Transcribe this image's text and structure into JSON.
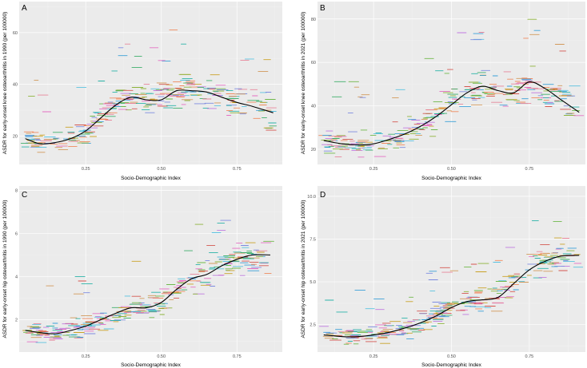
{
  "chart_data": [
    {
      "panel": "A",
      "type": "scatter",
      "xlabel": "Socio-Demographic Index",
      "ylabel": "ASDR for early-onset knee osteoarthritis in 1990 (per 100000)",
      "xlim": [
        0.03,
        0.9
      ],
      "ylim": [
        9,
        72
      ],
      "xticks": [
        0.25,
        0.5,
        0.75
      ],
      "xtick_labels": [
        "0.25",
        "0.50",
        "0.75"
      ],
      "yticks": [
        20,
        40,
        60
      ],
      "ytick_labels": [
        "20",
        "40",
        "60"
      ],
      "trend": {
        "x": [
          0.05,
          0.1,
          0.15,
          0.2,
          0.25,
          0.3,
          0.35,
          0.4,
          0.45,
          0.5,
          0.55,
          0.6,
          0.65,
          0.7,
          0.75,
          0.8,
          0.87
        ],
        "y": [
          19,
          17,
          17.5,
          19,
          22,
          27,
          32,
          35,
          34,
          34,
          37.5,
          37.5,
          37,
          35,
          33,
          31.5,
          29
        ]
      },
      "seed": 11,
      "points": 300,
      "point_spread": 9
    },
    {
      "panel": "B",
      "type": "scatter",
      "xlabel": "Socio-Demographic Index",
      "ylabel": "ASDR for early-onset knee osteoarthritis in 2021 (per 100000)",
      "xlim": [
        0.07,
        0.93
      ],
      "ylim": [
        13,
        88
      ],
      "xticks": [
        0.25,
        0.5,
        0.75
      ],
      "xtick_labels": [
        "0.25",
        "0.50",
        "0.75"
      ],
      "yticks": [
        20,
        40,
        60,
        80
      ],
      "ytick_labels": [
        "20",
        "40",
        "60",
        "80"
      ],
      "trend": {
        "x": [
          0.09,
          0.15,
          0.2,
          0.25,
          0.3,
          0.35,
          0.4,
          0.45,
          0.5,
          0.55,
          0.6,
          0.65,
          0.7,
          0.75,
          0.8,
          0.85,
          0.91
        ],
        "y": [
          24,
          22.5,
          22,
          22.5,
          24.5,
          27,
          30.5,
          35,
          40.5,
          46,
          49,
          47,
          46,
          51,
          48,
          43,
          37
        ]
      },
      "seed": 23,
      "points": 300,
      "point_spread": 11
    },
    {
      "panel": "C",
      "type": "scatter",
      "xlabel": "Socio-Demographic Index",
      "ylabel": "ASDR for early-onset hip osteoarthritis in 1990 (per 100000)",
      "xlim": [
        0.03,
        0.9
      ],
      "ylim": [
        0.5,
        8.2
      ],
      "xticks": [
        0.25,
        0.5,
        0.75
      ],
      "xtick_labels": [
        "0.25",
        "0.50",
        "0.75"
      ],
      "yticks": [
        2,
        4,
        6,
        8
      ],
      "ytick_labels": [
        "2",
        "4",
        "6",
        "8"
      ],
      "trend": {
        "x": [
          0.05,
          0.1,
          0.15,
          0.2,
          0.25,
          0.3,
          0.35,
          0.4,
          0.45,
          0.5,
          0.55,
          0.6,
          0.65,
          0.7,
          0.75,
          0.8,
          0.86
        ],
        "y": [
          1.5,
          1.4,
          1.35,
          1.5,
          1.7,
          2.0,
          2.3,
          2.55,
          2.55,
          2.8,
          3.4,
          3.9,
          4.1,
          4.5,
          4.8,
          5.0,
          5.0
        ]
      },
      "seed": 37,
      "points": 300,
      "point_spread": 0.9
    },
    {
      "panel": "D",
      "type": "scatter",
      "xlabel": "Socio-Demographic Index",
      "ylabel": "ASDR for early-onset hip osteoarthritis in 2021 (per 100000)",
      "xlim": [
        0.07,
        0.93
      ],
      "ylim": [
        0.9,
        10.6
      ],
      "xticks": [
        0.25,
        0.5,
        0.75
      ],
      "xtick_labels": [
        "0.25",
        "0.50",
        "0.75"
      ],
      "yticks": [
        2.5,
        5.0,
        7.5,
        10.0
      ],
      "ytick_labels": [
        "2.5",
        "5.0",
        "7.5",
        "10.0"
      ],
      "trend": {
        "x": [
          0.09,
          0.15,
          0.2,
          0.25,
          0.3,
          0.35,
          0.4,
          0.45,
          0.5,
          0.55,
          0.6,
          0.65,
          0.7,
          0.75,
          0.8,
          0.85,
          0.91
        ],
        "y": [
          1.9,
          1.8,
          1.8,
          1.9,
          2.05,
          2.3,
          2.6,
          3.0,
          3.5,
          3.85,
          3.95,
          4.1,
          4.9,
          5.7,
          6.2,
          6.5,
          6.55
        ]
      },
      "seed": 51,
      "points": 300,
      "point_spread": 1.0
    }
  ]
}
